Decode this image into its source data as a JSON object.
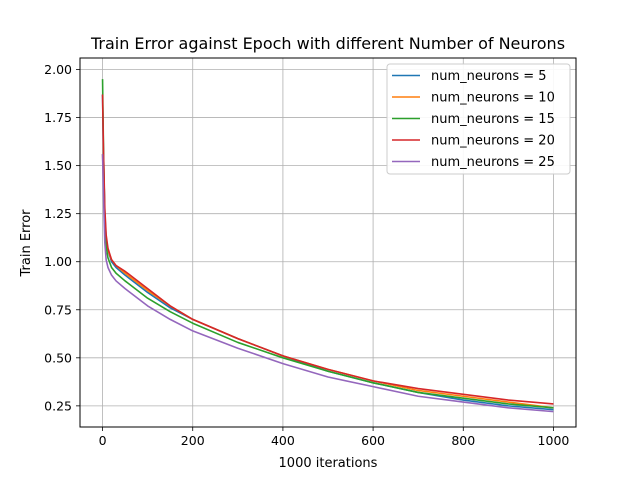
{
  "chart_data": {
    "type": "line",
    "title": "Train Error against Epoch with different Number of Neurons",
    "xlabel": "1000 iterations",
    "ylabel": "Train Error",
    "xlim": [
      -50,
      1050
    ],
    "ylim": [
      0.14,
      2.06
    ],
    "xticks": [
      0,
      200,
      400,
      600,
      800,
      1000
    ],
    "yticks": [
      0.25,
      0.5,
      0.75,
      1.0,
      1.25,
      1.5,
      1.75,
      2.0
    ],
    "xtick_labels": [
      "0",
      "200",
      "400",
      "600",
      "800",
      "1000"
    ],
    "ytick_labels": [
      "0.25",
      "0.50",
      "0.75",
      "1.00",
      "1.25",
      "1.50",
      "1.75",
      "2.00"
    ],
    "grid": true,
    "legend_position": "upper right",
    "series": [
      {
        "name": "num_neurons = 5",
        "color": "#1f77b4",
        "x": [
          0,
          2,
          5,
          8,
          12,
          20,
          30,
          50,
          100,
          150,
          200,
          300,
          400,
          500,
          600,
          700,
          800,
          900,
          1000
        ],
        "y": [
          1.87,
          1.55,
          1.25,
          1.12,
          1.06,
          1.0,
          0.97,
          0.93,
          0.84,
          0.76,
          0.7,
          0.6,
          0.51,
          0.43,
          0.37,
          0.32,
          0.28,
          0.25,
          0.23
        ]
      },
      {
        "name": "num_neurons = 10",
        "color": "#ff7f0e",
        "x": [
          0,
          2,
          5,
          8,
          12,
          20,
          30,
          50,
          100,
          150,
          200,
          300,
          400,
          500,
          600,
          700,
          800,
          900,
          1000
        ],
        "y": [
          1.56,
          1.42,
          1.2,
          1.11,
          1.06,
          1.01,
          0.98,
          0.94,
          0.85,
          0.77,
          0.7,
          0.6,
          0.51,
          0.44,
          0.38,
          0.33,
          0.3,
          0.27,
          0.24
        ]
      },
      {
        "name": "num_neurons = 15",
        "color": "#2ca02c",
        "x": [
          0,
          2,
          5,
          8,
          12,
          20,
          30,
          50,
          100,
          150,
          200,
          300,
          400,
          500,
          600,
          700,
          800,
          900,
          1000
        ],
        "y": [
          1.95,
          1.6,
          1.22,
          1.08,
          1.02,
          0.97,
          0.94,
          0.9,
          0.81,
          0.74,
          0.68,
          0.58,
          0.5,
          0.43,
          0.37,
          0.32,
          0.29,
          0.26,
          0.24
        ]
      },
      {
        "name": "num_neurons = 20",
        "color": "#d62728",
        "x": [
          0,
          2,
          5,
          8,
          12,
          20,
          30,
          50,
          100,
          150,
          200,
          300,
          400,
          500,
          600,
          700,
          800,
          900,
          1000
        ],
        "y": [
          1.87,
          1.58,
          1.28,
          1.14,
          1.07,
          1.01,
          0.98,
          0.95,
          0.86,
          0.77,
          0.7,
          0.6,
          0.51,
          0.44,
          0.38,
          0.34,
          0.31,
          0.28,
          0.26
        ]
      },
      {
        "name": "num_neurons = 25",
        "color": "#9467bd",
        "x": [
          0,
          2,
          5,
          8,
          12,
          20,
          30,
          50,
          100,
          150,
          200,
          300,
          400,
          500,
          600,
          700,
          800,
          900,
          1000
        ],
        "y": [
          1.56,
          1.35,
          1.1,
          1.01,
          0.97,
          0.93,
          0.9,
          0.86,
          0.77,
          0.7,
          0.64,
          0.55,
          0.47,
          0.4,
          0.35,
          0.3,
          0.27,
          0.24,
          0.22
        ]
      }
    ]
  }
}
